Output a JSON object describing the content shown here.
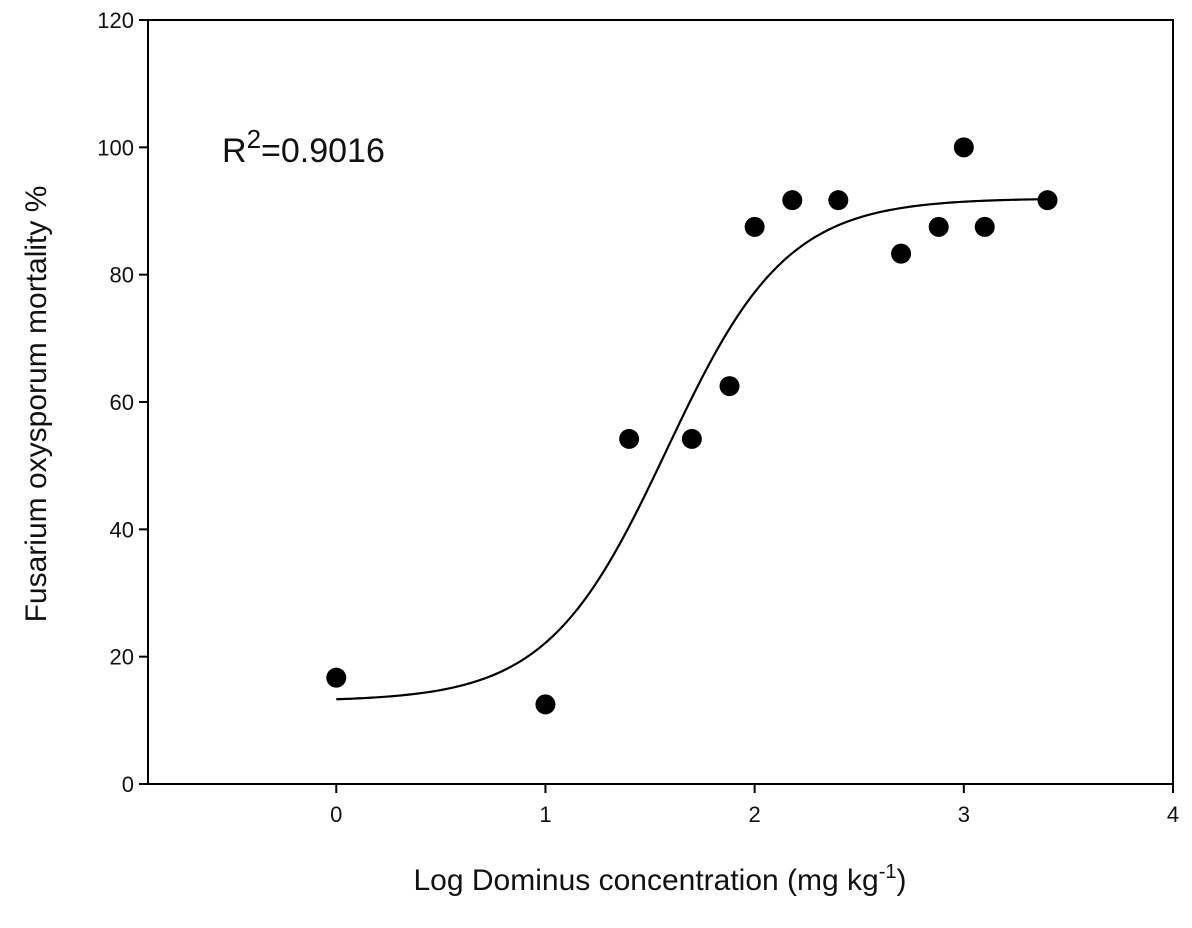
{
  "chart_data": {
    "type": "scatter",
    "title": "",
    "xlabel": "Log Dominus concentration (mg kg",
    "xlabel_sup": "-1",
    "xlabel_end": ")",
    "ylabel": "Fusarium oxysporum mortality %",
    "xlim": [
      -0.9,
      4
    ],
    "ylim": [
      0,
      120
    ],
    "xticks": [
      0,
      1,
      2,
      3,
      4
    ],
    "yticks": [
      0,
      20,
      40,
      60,
      80,
      100,
      120
    ],
    "grid": false,
    "annotation": {
      "prefix": "R",
      "sup": "2",
      "text": "=0.9016"
    },
    "points": [
      {
        "x": 0.0,
        "y": 16.7
      },
      {
        "x": 1.0,
        "y": 12.5
      },
      {
        "x": 1.4,
        "y": 54.2
      },
      {
        "x": 1.7,
        "y": 54.2
      },
      {
        "x": 1.88,
        "y": 62.5
      },
      {
        "x": 2.0,
        "y": 87.5
      },
      {
        "x": 2.18,
        "y": 91.7
      },
      {
        "x": 2.4,
        "y": 91.7
      },
      {
        "x": 2.7,
        "y": 83.3
      },
      {
        "x": 2.88,
        "y": 87.5
      },
      {
        "x": 3.0,
        "y": 100
      },
      {
        "x": 3.1,
        "y": 87.5
      },
      {
        "x": 3.4,
        "y": 91.7
      }
    ],
    "fit": {
      "model": "sigmoid",
      "bottom": 13,
      "top": 92,
      "x50": 1.58,
      "slope": 3.5,
      "x_range": [
        0,
        3.4
      ]
    },
    "colors": {
      "marker": "#000000",
      "line": "#000000",
      "axis": "#000000"
    }
  }
}
